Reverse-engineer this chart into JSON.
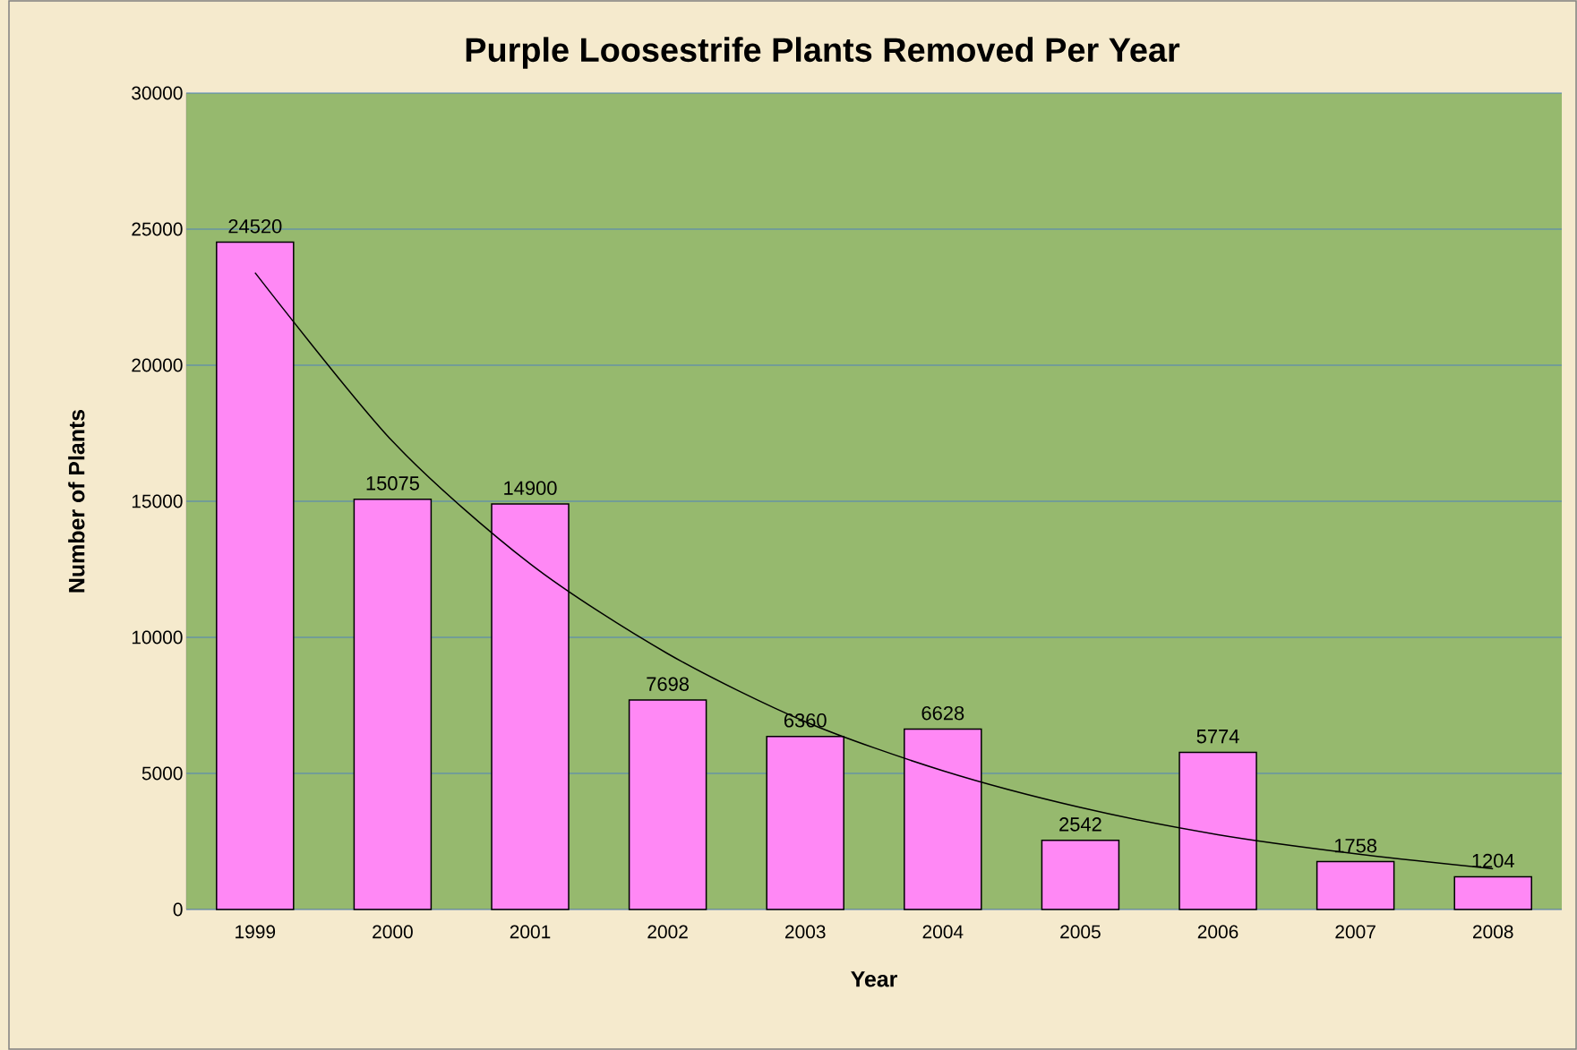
{
  "chart_data": {
    "type": "bar",
    "title": "Purple Loosestrife Plants Removed Per Year",
    "xlabel": "Year",
    "ylabel": "Number of Plants",
    "categories": [
      "1999",
      "2000",
      "2001",
      "2002",
      "2003",
      "2004",
      "2005",
      "2006",
      "2007",
      "2008"
    ],
    "series": [
      {
        "color": "#ff88f5",
        "data_labels": true,
        "values": [
          24520,
          15075,
          14900,
          7698,
          6360,
          6628,
          2542,
          5774,
          1758,
          1204
        ]
      },
      {
        "type": "line",
        "color": "#000000",
        "values": [
          23400,
          17200,
          12700,
          9400,
          6900,
          5100,
          3750,
          2750,
          2050,
          1500
        ]
      }
    ],
    "ylim": [
      0,
      30000
    ],
    "yticks": [
      0,
      5000,
      10000,
      15000,
      20000,
      25000,
      30000
    ],
    "grid": "y"
  }
}
